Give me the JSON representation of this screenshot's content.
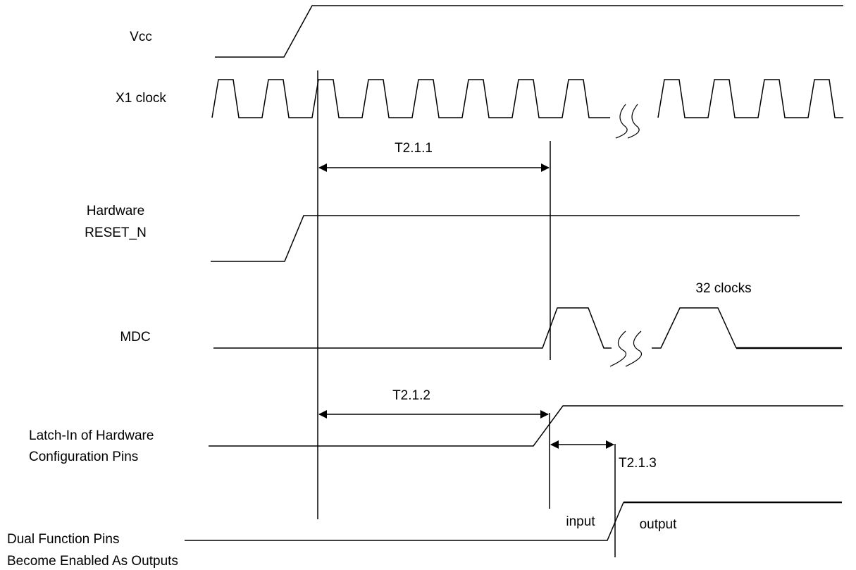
{
  "signals": {
    "vcc": "Vcc",
    "x1_clock": "X1 clock",
    "reset_line1": "Hardware",
    "reset_line2": "RESET_N",
    "mdc": "MDC",
    "latch_line1": "Latch-In of Hardware",
    "latch_line2": "Configuration Pins",
    "dual_line1": "Dual Function Pins",
    "dual_line2": "Become Enabled As Outputs"
  },
  "timings": {
    "t211": "T2.1.1",
    "t212": "T2.1.2",
    "t213": "T2.1.3"
  },
  "annotations": {
    "clocks": "32 clocks",
    "input": "input",
    "output": "output"
  },
  "colors": {
    "line": "#000000",
    "background": "#ffffff"
  }
}
